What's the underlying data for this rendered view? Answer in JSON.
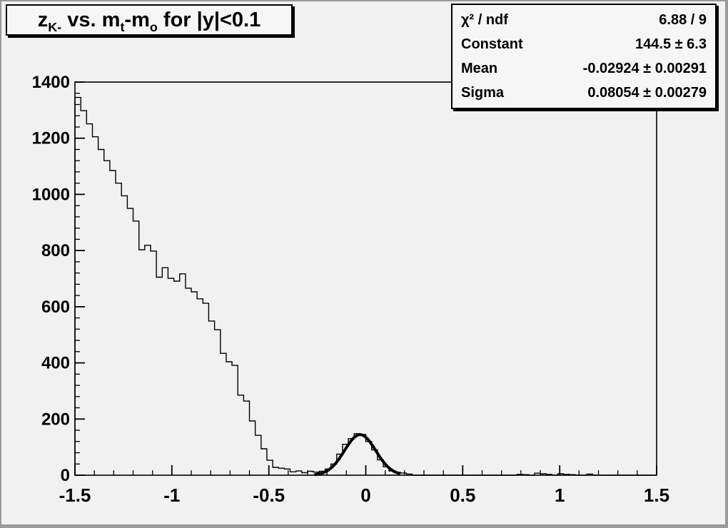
{
  "window": {
    "bg_color": "#f1f1f1",
    "edge_color": "#9a9a9a",
    "ink_color": "#000000"
  },
  "title": {
    "full_text": "z_K- vs. m_t-m_o for |y|<0.1",
    "seg_z": "z",
    "sub_k": "K-",
    "seg_vs": " vs. m",
    "sub_t": "t",
    "seg_dash_m": "-m",
    "sub_o": "o",
    "seg_tail": " for |y|<0.1"
  },
  "stats": {
    "rows": [
      {
        "label": "χ² / ndf",
        "value": "6.88 / 9"
      },
      {
        "label": "Constant",
        "value": "144.5 ± 6.3"
      },
      {
        "label": "Mean",
        "value": "-0.02924 ± 0.00291"
      },
      {
        "label": "Sigma",
        "value": "0.08054 ± 0.00279"
      }
    ]
  },
  "chart_data": {
    "type": "bar",
    "style": "step-histogram",
    "title": "z_K- vs. m_t-m_o for |y|<0.1",
    "xlabel": "",
    "ylabel": "",
    "xlim": [
      -1.5,
      1.5
    ],
    "ylim": [
      0,
      1400
    ],
    "grid": false,
    "legend": "stats-box-top-right",
    "x_major_ticks": [
      -1.5,
      -1,
      -0.5,
      0,
      0.5,
      1,
      1.5
    ],
    "x_tick_labels": [
      "-1.5",
      "-1",
      "-0.5",
      "0",
      "0.5",
      "1",
      "1.5"
    ],
    "x_minor_step": 0.1,
    "y_major_ticks": [
      0,
      200,
      400,
      600,
      800,
      1000,
      1200,
      1400
    ],
    "y_tick_labels": [
      "0",
      "200",
      "400",
      "600",
      "800",
      "1000",
      "1200",
      "1400"
    ],
    "y_minor_step": 40,
    "bins": {
      "start": -1.5,
      "width": 0.03,
      "values": [
        1345,
        1298,
        1251,
        1205,
        1160,
        1120,
        1085,
        1040,
        995,
        950,
        905,
        803,
        819,
        798,
        705,
        739,
        701,
        691,
        717,
        666,
        653,
        628,
        612,
        549,
        518,
        434,
        404,
        391,
        285,
        264,
        193,
        142,
        94,
        53,
        28,
        25,
        22,
        12,
        15,
        9,
        14,
        11,
        14,
        22,
        40,
        75,
        110,
        130,
        148,
        145,
        120,
        90,
        55,
        30,
        15,
        10,
        8,
        4,
        0,
        0,
        0,
        0,
        0,
        0,
        0,
        0,
        0,
        0,
        0,
        0,
        0,
        0,
        0,
        0,
        0,
        0,
        3,
        2,
        0,
        7,
        5,
        3,
        0,
        5,
        3,
        2,
        0,
        0,
        4,
        0,
        0,
        0,
        0,
        0,
        0,
        0,
        0,
        0,
        0,
        0
      ]
    },
    "fit": {
      "model": "gaussian",
      "chi2_ndf": "6.88 / 9",
      "constant": 144.5,
      "constant_err": 6.3,
      "mean": -0.02924,
      "mean_err": 0.00291,
      "sigma": 0.08054,
      "sigma_err": 0.00279,
      "draw_range": [
        -0.26,
        0.175
      ],
      "line_width": 4
    },
    "hist_line_width": 1.4
  }
}
